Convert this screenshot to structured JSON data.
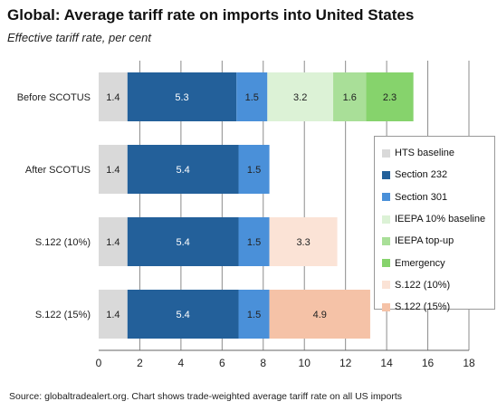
{
  "title": "Global: Average tariff rate on imports into United States",
  "subtitle": "Effective tariff rate, per cent",
  "source": "Source: globaltradealert.org. Chart shows trade-weighted average tariff rate on all US imports",
  "chart_data": {
    "type": "bar",
    "orientation": "horizontal",
    "stacked": true,
    "categories": [
      "Before SCOTUS",
      "After SCOTUS",
      "S.122 (10%)",
      "S.122 (15%)"
    ],
    "series": [
      {
        "name": "HTS baseline",
        "color": "#d9d9d9",
        "values": [
          1.4,
          1.4,
          1.4,
          1.4
        ]
      },
      {
        "name": "Section 232",
        "color": "#23609a",
        "values": [
          5.3,
          5.4,
          5.4,
          5.4
        ]
      },
      {
        "name": "Section 301",
        "color": "#4a90d9",
        "values": [
          1.5,
          1.5,
          1.5,
          1.5
        ]
      },
      {
        "name": "IEEPA 10% baseline",
        "color": "#dcf2d6",
        "values": [
          3.2,
          null,
          null,
          null
        ]
      },
      {
        "name": "IEEPA top-up",
        "color": "#a9df98",
        "values": [
          1.6,
          null,
          null,
          null
        ]
      },
      {
        "name": "Emergency",
        "color": "#86d36c",
        "values": [
          2.3,
          null,
          null,
          null
        ]
      },
      {
        "name": "S.122 (10%)",
        "color": "#fbe3d6",
        "values": [
          null,
          null,
          3.3,
          null
        ]
      },
      {
        "name": "S.122 (15%)",
        "color": "#f5c2a7",
        "values": [
          null,
          null,
          null,
          4.9
        ]
      }
    ],
    "xlim": [
      0,
      18
    ],
    "xticks": [
      0,
      2,
      4,
      6,
      8,
      10,
      12,
      14,
      16,
      18
    ],
    "grid": "vertical",
    "legend": "right"
  }
}
